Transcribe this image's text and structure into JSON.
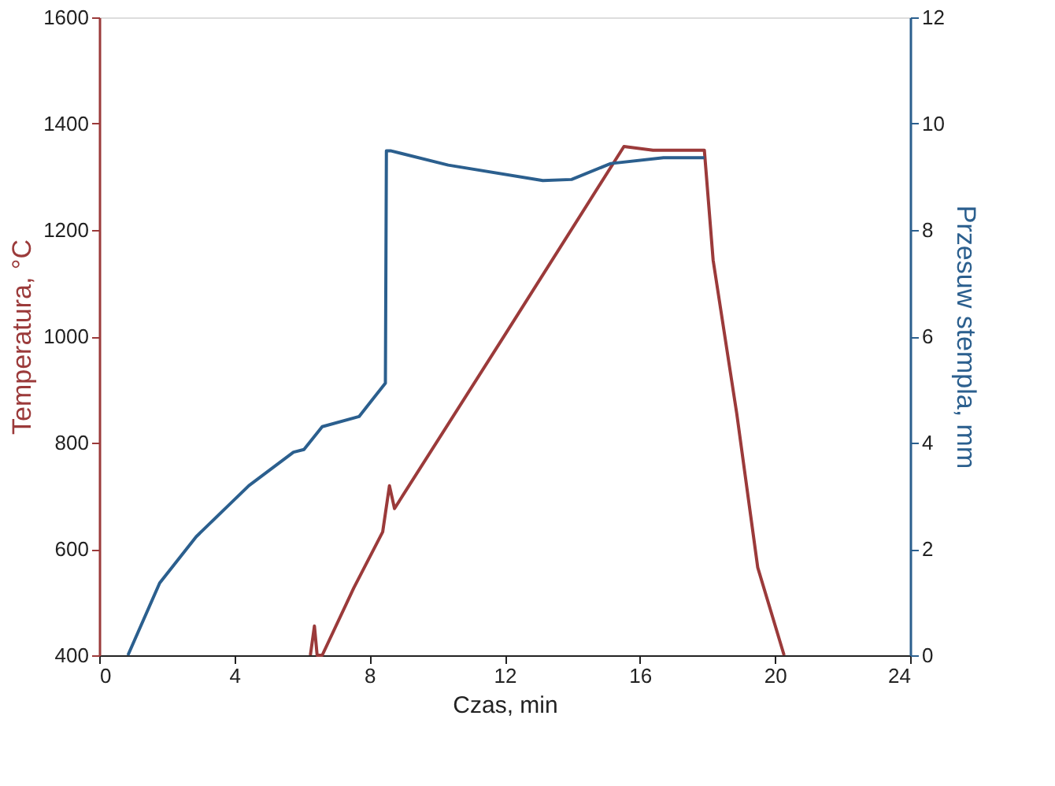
{
  "chart_data": {
    "type": "line",
    "xlabel": "Czas, min",
    "ylabel": "Temperatura, °C",
    "y2label": "Przesuw stempla, mm",
    "xlim": [
      0,
      24
    ],
    "xticks": [
      0,
      4,
      8,
      12,
      16,
      20,
      24
    ],
    "ylim": [
      400,
      1600
    ],
    "yticks": [
      400,
      600,
      800,
      1000,
      1200,
      1400,
      1600
    ],
    "y2lim": [
      0,
      12
    ],
    "y2ticks": [
      0,
      2,
      4,
      6,
      8,
      10,
      12
    ],
    "grid": false,
    "marker": "none",
    "line_style": "solid",
    "series": [
      {
        "color": "#9b3a3a",
        "x": [
          6.25,
          6.37,
          6.45,
          6.6,
          7.53,
          8.39,
          8.59,
          8.74,
          12,
          15.53,
          16.39,
          17.91,
          18.17,
          18.87,
          19.49,
          20.27
        ],
        "values": [
          400,
          455,
          400,
          400,
          526,
          632,
          719,
          676,
          1002,
          1357,
          1350,
          1350,
          1143,
          854,
          565,
          400
        ]
      },
      {
        "color": "#2b5f8e",
        "axis": "y2",
        "x": [
          0.85,
          1.79,
          2.87,
          4.43,
          5.75,
          6.06,
          6.6,
          7.69,
          8.47,
          8.5,
          8.62,
          10.33,
          13.13,
          13.98,
          15.14,
          16.7,
          17.91
        ],
        "values": [
          0,
          1.36,
          2.23,
          3.19,
          3.82,
          3.87,
          4.3,
          4.49,
          5.12,
          9.49,
          9.49,
          9.22,
          8.93,
          8.95,
          9.25,
          9.36,
          9.36
        ]
      }
    ]
  }
}
